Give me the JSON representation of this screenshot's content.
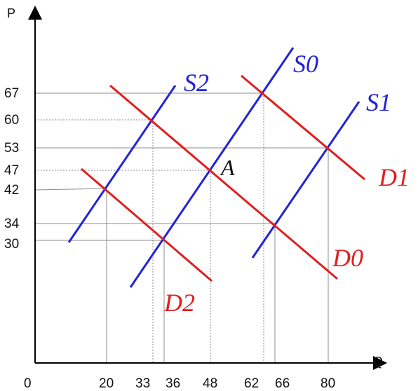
{
  "axes": {
    "y_label": "P",
    "x_label": "Q",
    "origin_label": "0"
  },
  "price_ticks": [
    "67",
    "60",
    "53",
    "47",
    "42",
    "34",
    "30"
  ],
  "quantity_ticks": [
    "20",
    "33",
    "36",
    "48",
    "62",
    "66",
    "80"
  ],
  "curves": {
    "supply": [
      "S0",
      "S1",
      "S2"
    ],
    "demand": [
      "D0",
      "D1",
      "D2"
    ]
  },
  "point_label": "A",
  "colors": {
    "supply": "#2323d6",
    "demand": "#e01f1f",
    "guide": "#8c8c8c",
    "axis": "#000000"
  }
}
